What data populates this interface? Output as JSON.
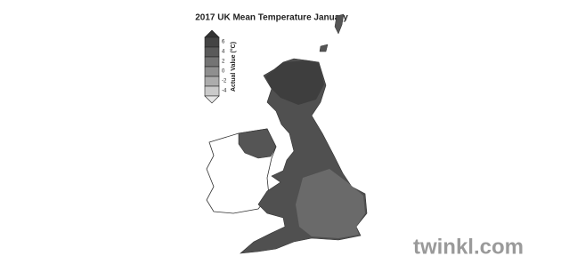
{
  "title": "2017 UK Mean Temperature January",
  "legend": {
    "title": "Actual Value (°C)",
    "labels": [
      "6",
      "4",
      "2",
      "0",
      "-2",
      "-4"
    ]
  },
  "watermark": "twinkl.com"
}
